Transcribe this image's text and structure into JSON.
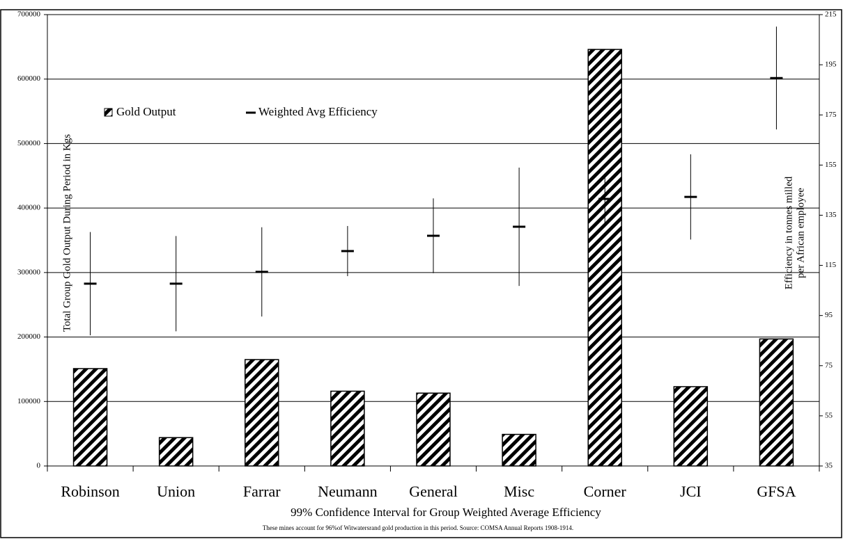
{
  "chart_data": {
    "type": "bar",
    "categories": [
      "Robinson",
      "Union",
      "Farrar",
      "Neumann",
      "General",
      "Misc",
      "Corner",
      "JCI",
      "GFSA"
    ],
    "series": [
      {
        "name": "Gold Output",
        "color": "#000000",
        "values": [
          151000,
          44000,
          165000,
          116000,
          113000,
          49000,
          646000,
          123000,
          197000
        ]
      },
      {
        "name": "Weighted Avg Efficiency",
        "axis": "y2",
        "color": "#000000",
        "values": [
          107.7,
          107.7,
          112.4,
          120.7,
          126.8,
          130.4,
          141.5,
          142.3,
          189.7
        ],
        "errors": [
          20.6,
          19,
          17.8,
          10,
          14.9,
          23.6,
          10,
          17,
          20.5
        ]
      }
    ],
    "ylim": [
      0,
      700000
    ],
    "yticks": [
      0,
      100000,
      200000,
      300000,
      400000,
      500000,
      600000,
      700000
    ],
    "y2lim": [
      35,
      215
    ],
    "y2ticks": [
      35,
      55,
      75,
      95,
      115,
      135,
      155,
      175,
      195,
      215
    ],
    "grid": true,
    "y_label": "Total Group Gold Output During Period in Kgs",
    "y2_label": [
      "Efficiency in tonnes milled",
      "per African employee"
    ],
    "x_label": "99% Confidence Interval for Group Weighted Average Efficiency",
    "note": "These mines account for 96%of Witwatersrand gold production in this period.  Source: COMSA Annual Reports 1908-1914."
  }
}
